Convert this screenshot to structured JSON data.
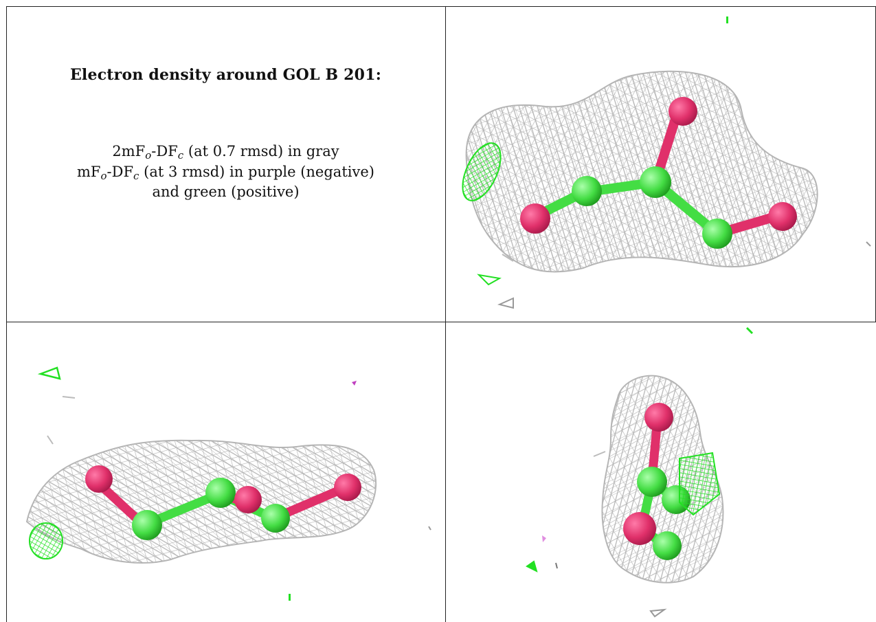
{
  "caption": {
    "title": "Electron density around GOL B 201:",
    "line1": {
      "pre": "2mF",
      "sub1": "o",
      "mid": "-DF",
      "sub2": "c",
      "post": " (at 0.7 rmsd) in gray"
    },
    "line2": {
      "pre": "mF",
      "sub1": "o",
      "mid": "-DF",
      "sub2": "c",
      "post": " (at 3 rmsd) in purple (negative)"
    },
    "line3": "and green (positive)"
  },
  "colors": {
    "mesh_2fofc": "#b5b5b5",
    "diff_positive": "#22e022",
    "diff_negative": "#c040c0",
    "oxygen": "#e0306a",
    "carbon": "#44dd44",
    "border": "#222222"
  },
  "views": [
    {
      "name": "view-top-right",
      "ligand": "GOL B 201"
    },
    {
      "name": "view-bottom-left",
      "ligand": "GOL B 201"
    },
    {
      "name": "view-bottom-right",
      "ligand": "GOL B 201"
    }
  ]
}
